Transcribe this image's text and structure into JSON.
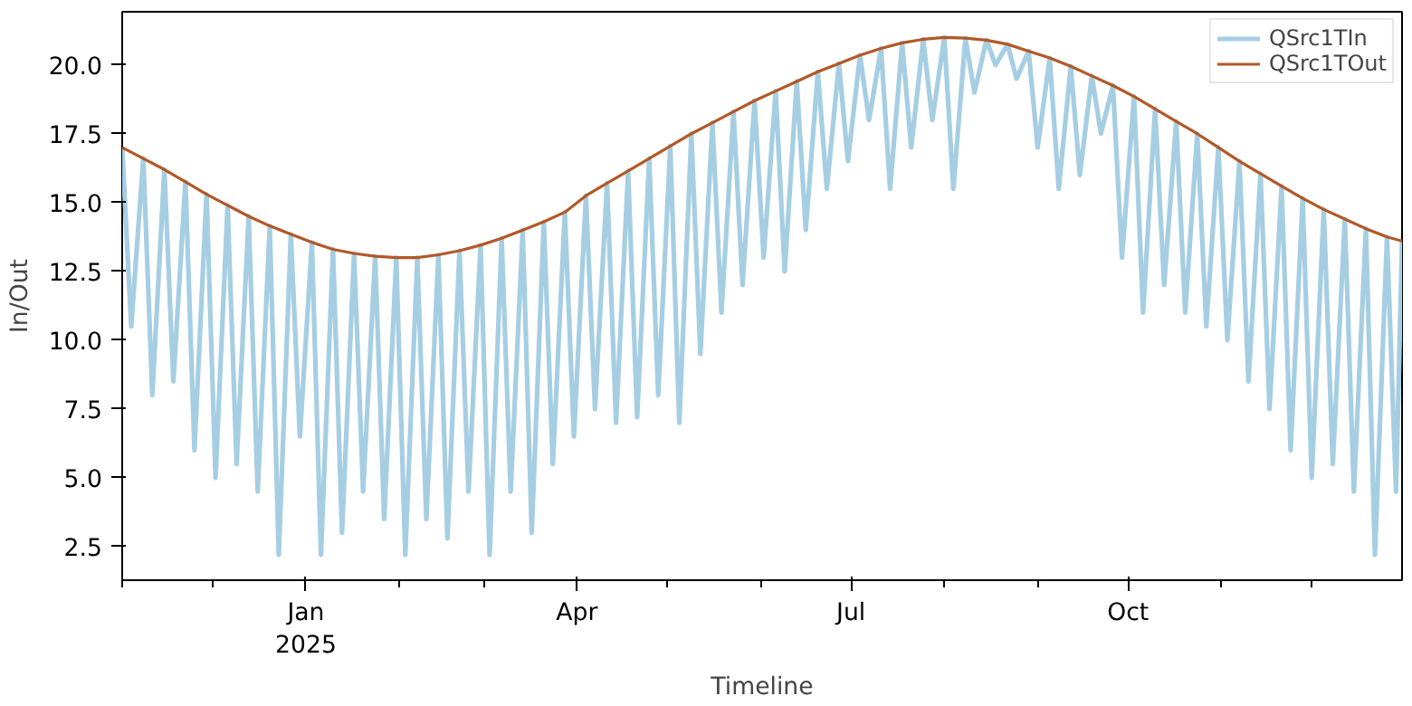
{
  "chart_data": {
    "type": "line",
    "xlabel": "Timeline",
    "ylabel": "In/Out",
    "grid": false,
    "legend": "top right",
    "marker": "none",
    "line_style": "solid",
    "xlim": [
      "2024-11-01",
      "2025-12-31"
    ],
    "xticks": [
      {
        "value": "2024-11-01",
        "label": null
      },
      {
        "value": "2024-12-01",
        "label": null
      },
      {
        "value": "2025-01-01",
        "label": "Jan\n2025"
      },
      {
        "value": "2025-02-01",
        "label": null
      },
      {
        "value": "2025-03-01",
        "label": null
      },
      {
        "value": "2025-04-01",
        "label": "Apr"
      },
      {
        "value": "2025-05-01",
        "label": null
      },
      {
        "value": "2025-06-01",
        "label": null
      },
      {
        "value": "2025-07-01",
        "label": "Jul"
      },
      {
        "value": "2025-08-01",
        "label": null
      },
      {
        "value": "2025-09-01",
        "label": null
      },
      {
        "value": "2025-10-01",
        "label": "Oct"
      },
      {
        "value": "2025-11-01",
        "label": null
      },
      {
        "value": "2025-12-01",
        "label": null
      }
    ],
    "ylim": [
      1.28,
      21.93
    ],
    "yticks": [
      {
        "value": 2.5,
        "label": "2.5"
      },
      {
        "value": 5,
        "label": "5.0"
      },
      {
        "value": 7.5,
        "label": "7.5"
      },
      {
        "value": 10,
        "label": "10.0"
      },
      {
        "value": 12.5,
        "label": "12.5"
      },
      {
        "value": 15,
        "label": "15.0"
      },
      {
        "value": 17.5,
        "label": "17.5"
      },
      {
        "value": 20,
        "label": "20.0"
      }
    ],
    "series": [
      {
        "name": "QSrc1TIn",
        "color": "#a6cee3",
        "x": [
          "2024-11-01",
          "2024-11-04",
          "2024-11-08",
          "2024-11-11",
          "2024-11-15",
          "2024-11-18",
          "2024-11-22",
          "2024-11-25",
          "2024-11-29",
          "2024-12-02",
          "2024-12-06",
          "2024-12-09",
          "2024-12-13",
          "2024-12-16",
          "2024-12-20",
          "2024-12-23",
          "2024-12-27",
          "2024-12-30",
          "2025-01-03",
          "2025-01-06",
          "2025-01-10",
          "2025-01-13",
          "2025-01-17",
          "2025-01-20",
          "2025-01-24",
          "2025-01-27",
          "2025-01-31",
          "2025-02-03",
          "2025-02-07",
          "2025-02-10",
          "2025-02-14",
          "2025-02-17",
          "2025-02-21",
          "2025-02-24",
          "2025-02-28",
          "2025-03-03",
          "2025-03-07",
          "2025-03-10",
          "2025-03-14",
          "2025-03-17",
          "2025-03-21",
          "2025-03-24",
          "2025-03-28",
          "2025-03-31",
          "2025-04-04",
          "2025-04-07",
          "2025-04-11",
          "2025-04-14",
          "2025-04-18",
          "2025-04-21",
          "2025-04-25",
          "2025-04-28",
          "2025-05-02",
          "2025-05-05",
          "2025-05-09",
          "2025-05-12",
          "2025-05-16",
          "2025-05-19",
          "2025-05-23",
          "2025-05-26",
          "2025-05-30",
          "2025-06-02",
          "2025-06-06",
          "2025-06-09",
          "2025-06-13",
          "2025-06-16",
          "2025-06-20",
          "2025-06-23",
          "2025-06-27",
          "2025-06-30",
          "2025-07-04",
          "2025-07-07",
          "2025-07-11",
          "2025-07-14",
          "2025-07-18",
          "2025-07-21",
          "2025-07-25",
          "2025-07-28",
          "2025-08-01",
          "2025-08-04",
          "2025-08-08",
          "2025-08-11",
          "2025-08-15",
          "2025-08-18",
          "2025-08-22",
          "2025-08-25",
          "2025-08-29",
          "2025-09-01",
          "2025-09-05",
          "2025-09-08",
          "2025-09-12",
          "2025-09-15",
          "2025-09-19",
          "2025-09-22",
          "2025-09-26",
          "2025-09-29",
          "2025-10-03",
          "2025-10-06",
          "2025-10-10",
          "2025-10-13",
          "2025-10-17",
          "2025-10-20",
          "2025-10-24",
          "2025-10-27",
          "2025-10-31",
          "2025-11-03",
          "2025-11-07",
          "2025-11-10",
          "2025-11-14",
          "2025-11-17",
          "2025-11-21",
          "2025-11-24",
          "2025-11-28",
          "2025-12-01",
          "2025-12-05",
          "2025-12-08",
          "2025-12-12",
          "2025-12-15",
          "2025-12-19",
          "2025-12-22",
          "2025-12-26",
          "2025-12-29",
          "2025-12-31"
        ],
        "values": [
          17,
          10.5,
          16.6,
          8,
          16.2,
          8.5,
          15.75,
          6,
          15.3,
          5,
          14.9,
          5.5,
          14.5,
          4.5,
          14.15,
          2.2,
          13.85,
          6.5,
          13.55,
          2.2,
          13.3,
          3,
          13.15,
          4.5,
          13.05,
          3.5,
          13,
          2.2,
          13,
          3.5,
          13.1,
          2.8,
          13.25,
          4.5,
          13.45,
          2.2,
          13.7,
          4.5,
          14,
          3,
          14.3,
          5.5,
          14.65,
          6.5,
          15.25,
          7.5,
          15.7,
          7,
          16.15,
          7.2,
          16.6,
          8,
          17.05,
          7,
          17.5,
          9.5,
          17.9,
          11,
          18.3,
          12,
          18.7,
          13,
          19.05,
          12.5,
          19.4,
          14,
          19.75,
          15.5,
          20.05,
          16.5,
          20.35,
          18,
          20.6,
          15.5,
          20.8,
          17,
          20.93,
          18,
          21,
          15.5,
          20.97,
          19,
          20.9,
          20,
          20.75,
          19.5,
          20.5,
          17,
          20.25,
          15.5,
          19.95,
          16,
          19.6,
          17.5,
          19.25,
          13,
          18.85,
          11,
          18.4,
          12,
          17.95,
          11,
          17.5,
          10.5,
          17,
          10,
          16.5,
          8.5,
          16.05,
          7.5,
          15.6,
          6,
          15.15,
          5,
          14.75,
          5.5,
          14.4,
          4.5,
          14.05,
          2.2,
          13.75,
          4.5,
          13.6
        ]
      },
      {
        "name": "QSrc1TOut",
        "color": "#b15928",
        "x": [
          "2024-11-01",
          "2024-11-08",
          "2024-11-15",
          "2024-11-22",
          "2024-11-29",
          "2024-12-06",
          "2024-12-13",
          "2024-12-20",
          "2024-12-27",
          "2025-01-03",
          "2025-01-10",
          "2025-01-17",
          "2025-01-24",
          "2025-01-31",
          "2025-02-07",
          "2025-02-14",
          "2025-02-21",
          "2025-02-28",
          "2025-03-07",
          "2025-03-14",
          "2025-03-21",
          "2025-03-28",
          "2025-04-04",
          "2025-04-11",
          "2025-04-18",
          "2025-04-25",
          "2025-05-02",
          "2025-05-09",
          "2025-05-16",
          "2025-05-23",
          "2025-05-30",
          "2025-06-06",
          "2025-06-13",
          "2025-06-20",
          "2025-06-27",
          "2025-07-04",
          "2025-07-11",
          "2025-07-18",
          "2025-07-25",
          "2025-08-01",
          "2025-08-08",
          "2025-08-15",
          "2025-08-22",
          "2025-08-29",
          "2025-09-05",
          "2025-09-12",
          "2025-09-19",
          "2025-09-26",
          "2025-10-03",
          "2025-10-10",
          "2025-10-17",
          "2025-10-24",
          "2025-10-31",
          "2025-11-07",
          "2025-11-14",
          "2025-11-21",
          "2025-11-28",
          "2025-12-05",
          "2025-12-12",
          "2025-12-19",
          "2025-12-26",
          "2025-12-31"
        ],
        "values": [
          17,
          16.6,
          16.2,
          15.75,
          15.3,
          14.9,
          14.5,
          14.15,
          13.85,
          13.55,
          13.3,
          13.15,
          13.05,
          13,
          13,
          13.1,
          13.25,
          13.45,
          13.7,
          14,
          14.3,
          14.65,
          15.25,
          15.7,
          16.15,
          16.6,
          17.05,
          17.5,
          17.9,
          18.3,
          18.7,
          19.05,
          19.4,
          19.75,
          20.05,
          20.35,
          20.6,
          20.8,
          20.93,
          21,
          20.97,
          20.9,
          20.75,
          20.5,
          20.25,
          19.95,
          19.6,
          19.25,
          18.85,
          18.4,
          17.95,
          17.5,
          17,
          16.5,
          16.05,
          15.6,
          15.15,
          14.75,
          14.4,
          14.05,
          13.75,
          13.6
        ]
      }
    ]
  }
}
